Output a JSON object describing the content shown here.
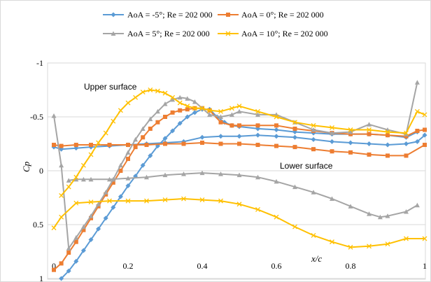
{
  "chart_data": {
    "type": "line",
    "xlabel": "x/c",
    "ylabel": "Cp",
    "xlim": [
      0,
      1
    ],
    "ylim": [
      1,
      -1
    ],
    "y_inverted": true,
    "xticks": [
      "0",
      "0.2",
      "0.4",
      "0.6",
      "0.8",
      "1"
    ],
    "yticks": [
      "-1",
      "-0.5",
      "0",
      "0.5",
      "1"
    ],
    "grid": "horizontal",
    "legend_position": "top",
    "annotations": {
      "upper": "Upper surface",
      "lower": "Lower surface"
    },
    "series": [
      {
        "name": "AoA = -5°; Re = 202 000",
        "color": "#5b9bd5",
        "marker": "diamond",
        "upper": {
          "x": [
            0.02,
            0.04,
            0.06,
            0.08,
            0.1,
            0.12,
            0.14,
            0.16,
            0.18,
            0.2,
            0.22,
            0.24,
            0.26,
            0.28,
            0.3,
            0.32,
            0.34,
            0.36,
            0.38,
            0.4,
            0.42,
            0.44,
            0.46,
            0.48,
            0.5,
            0.55,
            0.6,
            0.65,
            0.7,
            0.75,
            0.8,
            0.85,
            0.9,
            0.95,
            0.98
          ],
          "y": [
            1.0,
            0.93,
            0.84,
            0.74,
            0.64,
            0.54,
            0.44,
            0.34,
            0.24,
            0.14,
            0.05,
            -0.05,
            -0.14,
            -0.23,
            -0.3,
            -0.37,
            -0.44,
            -0.5,
            -0.54,
            -0.57,
            -0.57,
            -0.5,
            -0.45,
            -0.42,
            -0.41,
            -0.39,
            -0.38,
            -0.36,
            -0.35,
            -0.34,
            -0.34,
            -0.34,
            -0.33,
            -0.31,
            -0.36
          ]
        },
        "lower": {
          "x": [
            0.0,
            0.02,
            0.06,
            0.1,
            0.15,
            0.2,
            0.25,
            0.3,
            0.35,
            0.4,
            0.45,
            0.5,
            0.55,
            0.6,
            0.65,
            0.7,
            0.75,
            0.8,
            0.85,
            0.9,
            0.95,
            0.98,
            1.0
          ],
          "y": [
            -0.22,
            -0.2,
            -0.21,
            -0.22,
            -0.23,
            -0.24,
            -0.25,
            -0.26,
            -0.27,
            -0.31,
            -0.32,
            -0.32,
            -0.33,
            -0.32,
            -0.31,
            -0.29,
            -0.27,
            -0.26,
            -0.25,
            -0.24,
            -0.25,
            -0.27,
            -0.33
          ]
        }
      },
      {
        "name": "AoA = 0°; Re = 202 000",
        "color": "#ed7d31",
        "marker": "square",
        "upper": {
          "x": [
            0.0,
            0.02,
            0.04,
            0.06,
            0.08,
            0.1,
            0.12,
            0.14,
            0.16,
            0.18,
            0.2,
            0.22,
            0.24,
            0.26,
            0.28,
            0.3,
            0.32,
            0.34,
            0.36,
            0.38,
            0.4,
            0.42,
            0.45,
            0.48,
            0.5,
            0.55,
            0.6,
            0.65,
            0.7,
            0.75,
            0.8,
            0.85,
            0.9,
            0.95,
            0.98,
            1.0
          ],
          "y": [
            0.92,
            0.86,
            0.76,
            0.66,
            0.55,
            0.44,
            0.33,
            0.22,
            0.11,
            0.0,
            -0.11,
            -0.22,
            -0.31,
            -0.39,
            -0.45,
            -0.5,
            -0.54,
            -0.56,
            -0.57,
            -0.58,
            -0.58,
            -0.56,
            -0.45,
            -0.42,
            -0.42,
            -0.42,
            -0.42,
            -0.39,
            -0.37,
            -0.35,
            -0.34,
            -0.34,
            -0.33,
            -0.32,
            -0.37,
            -0.38
          ]
        },
        "lower": {
          "x": [
            0.0,
            0.02,
            0.06,
            0.1,
            0.15,
            0.2,
            0.25,
            0.3,
            0.35,
            0.4,
            0.45,
            0.5,
            0.55,
            0.6,
            0.65,
            0.7,
            0.75,
            0.8,
            0.85,
            0.9,
            0.95,
            1.0
          ],
          "y": [
            -0.24,
            -0.23,
            -0.24,
            -0.24,
            -0.24,
            -0.24,
            -0.24,
            -0.25,
            -0.25,
            -0.26,
            -0.25,
            -0.25,
            -0.24,
            -0.23,
            -0.22,
            -0.2,
            -0.18,
            -0.17,
            -0.15,
            -0.14,
            -0.14,
            -0.24
          ]
        }
      },
      {
        "name": "AoA = 5°; Re = 202 000",
        "color": "#a5a5a5",
        "marker": "triangle",
        "upper": {
          "x": [
            0.0,
            0.02,
            0.04,
            0.06,
            0.08,
            0.1,
            0.12,
            0.14,
            0.16,
            0.18,
            0.2,
            0.22,
            0.24,
            0.26,
            0.28,
            0.3,
            0.32,
            0.34,
            0.36,
            0.38,
            0.4,
            0.42,
            0.45,
            0.48,
            0.5,
            0.55,
            0.6,
            0.65,
            0.7,
            0.75,
            0.8,
            0.85,
            0.9,
            0.95,
            0.98
          ],
          "y": [
            -0.51,
            -0.05,
            0.72,
            0.62,
            0.52,
            0.42,
            0.31,
            0.2,
            0.08,
            -0.05,
            -0.17,
            -0.29,
            -0.39,
            -0.48,
            -0.55,
            -0.62,
            -0.66,
            -0.68,
            -0.67,
            -0.64,
            -0.58,
            -0.52,
            -0.5,
            -0.52,
            -0.55,
            -0.52,
            -0.52,
            -0.45,
            -0.38,
            -0.35,
            -0.36,
            -0.43,
            -0.38,
            -0.34,
            -0.82
          ]
        },
        "lower": {
          "x": [
            0.04,
            0.06,
            0.08,
            0.1,
            0.15,
            0.2,
            0.25,
            0.3,
            0.35,
            0.4,
            0.45,
            0.5,
            0.55,
            0.6,
            0.65,
            0.7,
            0.75,
            0.8,
            0.85,
            0.88,
            0.9,
            0.95,
            0.98
          ],
          "y": [
            0.09,
            0.08,
            0.08,
            0.08,
            0.08,
            0.07,
            0.06,
            0.04,
            0.03,
            0.02,
            0.03,
            0.04,
            0.06,
            0.1,
            0.15,
            0.2,
            0.26,
            0.33,
            0.4,
            0.43,
            0.42,
            0.38,
            0.32
          ]
        }
      },
      {
        "name": "AoA = 10°; Re = 202 000",
        "color": "#ffc000",
        "marker": "x",
        "upper": {
          "x": [
            0.02,
            0.04,
            0.06,
            0.08,
            0.1,
            0.12,
            0.14,
            0.16,
            0.18,
            0.2,
            0.22,
            0.24,
            0.26,
            0.28,
            0.3,
            0.32,
            0.34,
            0.36,
            0.38,
            0.4,
            0.42,
            0.45,
            0.48,
            0.5,
            0.55,
            0.6,
            0.65,
            0.7,
            0.75,
            0.8,
            0.85,
            0.9,
            0.95,
            0.98,
            1.0
          ],
          "y": [
            0.23,
            0.15,
            0.06,
            -0.05,
            -0.15,
            -0.26,
            -0.35,
            -0.46,
            -0.56,
            -0.63,
            -0.68,
            -0.73,
            -0.75,
            -0.74,
            -0.72,
            -0.68,
            -0.63,
            -0.6,
            -0.58,
            -0.58,
            -0.56,
            -0.55,
            -0.58,
            -0.6,
            -0.55,
            -0.5,
            -0.45,
            -0.42,
            -0.4,
            -0.38,
            -0.38,
            -0.36,
            -0.35,
            -0.55,
            -0.52
          ]
        },
        "lower": {
          "x": [
            0.0,
            0.02,
            0.06,
            0.1,
            0.15,
            0.2,
            0.25,
            0.3,
            0.35,
            0.4,
            0.45,
            0.5,
            0.55,
            0.6,
            0.65,
            0.7,
            0.75,
            0.8,
            0.85,
            0.9,
            0.95,
            1.0
          ],
          "y": [
            0.53,
            0.43,
            0.3,
            0.29,
            0.28,
            0.28,
            0.28,
            0.27,
            0.26,
            0.27,
            0.28,
            0.31,
            0.36,
            0.43,
            0.52,
            0.6,
            0.66,
            0.71,
            0.7,
            0.68,
            0.63,
            0.63
          ]
        }
      }
    ]
  }
}
